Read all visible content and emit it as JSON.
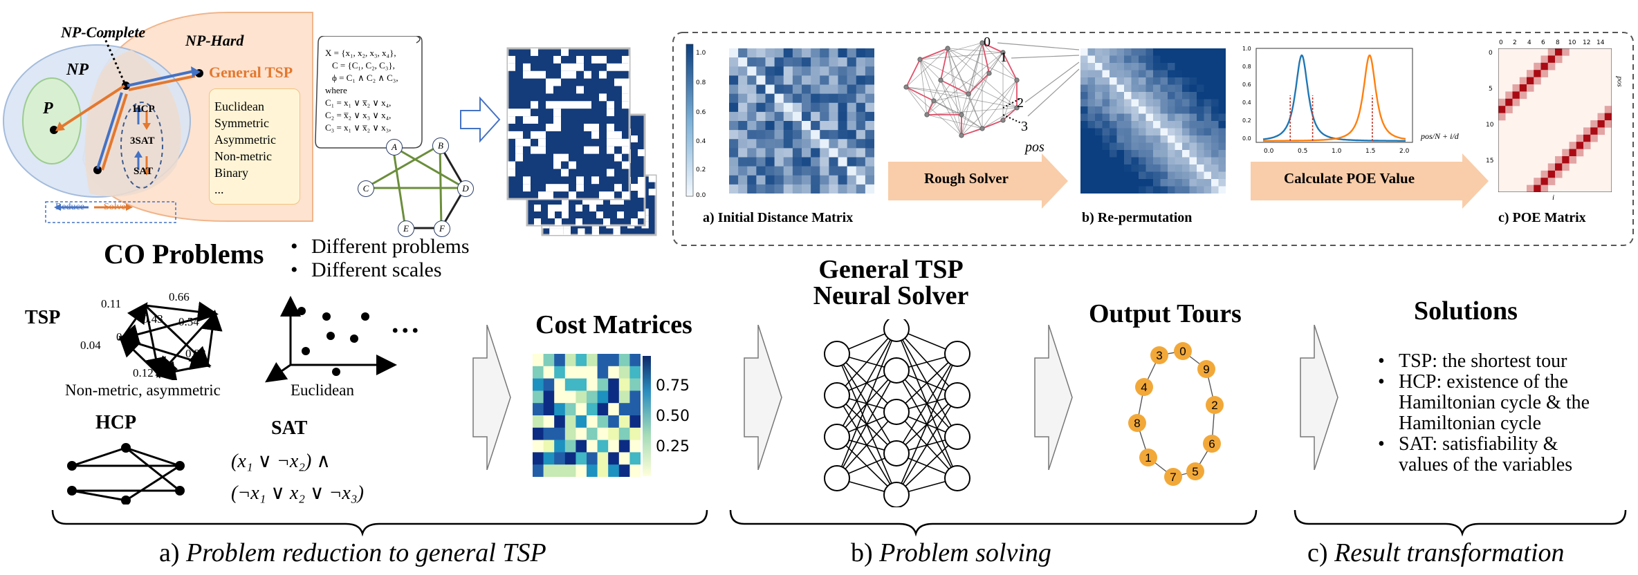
{
  "sets": {
    "np_complete": "NP-Complete",
    "np_hard": "NP-Hard",
    "np": "NP",
    "p": "P",
    "general_tsp": "General TSP",
    "hcp": "HCP",
    "sat3": "3SAT",
    "sat": "SAT",
    "tsp_types": [
      "Euclidean",
      "Symmetric",
      "Asymmetric",
      "Non-metric",
      "Binary",
      "..."
    ],
    "reduce": "Reduce",
    "solve": "Solve"
  },
  "formula_scroll": {
    "lines": [
      "X = {x₁, x₂, x₃, x₄},",
      "C = {C₁, C₂, C₃},",
      "ϕ = C₁ ∧ C₂ ∧ C₃,",
      "where",
      "C₁ = x₁ ∨ x̅₂ ∨ x₄,",
      "C₂ = x̅₂ ∨ x₃ ∨ x₄,",
      "C₃ = x₁ ∨ x̅₂ ∨ x₃,"
    ]
  },
  "hcp_graph_nodes": [
    "A",
    "B",
    "C",
    "D",
    "E",
    "F"
  ],
  "pipeline_panel": {
    "colorbar_ticks": [
      "1.0",
      "0.8",
      "0.6",
      "0.4",
      "0.2",
      "0.0"
    ],
    "step_a": "a) Initial Distance Matrix",
    "rough_solver": "Rough Solver",
    "graph_labels": [
      "0",
      "1",
      "2",
      "3",
      "pos"
    ],
    "step_b": "b) Re-permutation",
    "calc_poe": "Calculate POE Value",
    "poe_xticks": [
      "0.0",
      "0.5",
      "1.0",
      "1.5",
      "2.0"
    ],
    "poe_yticks": [
      "1.0",
      "0.8",
      "0.6",
      "0.4",
      "0.2",
      "0.0"
    ],
    "poe_xlabel": "pos/N + i/d",
    "poe_matrix_ticks": [
      "0",
      "2",
      "4",
      "6",
      "8",
      "10",
      "12",
      "14"
    ],
    "poe_matrix_yticks": [
      "0",
      "5",
      "10",
      "15"
    ],
    "poe_matrix_xlabel": "i",
    "poe_matrix_ylabel": "pos",
    "step_c": "c) POE Matrix"
  },
  "co_problems": {
    "title": "CO Problems",
    "bullets": [
      "Different problems",
      "Different scales"
    ],
    "tsp": "TSP",
    "tsp_weights": [
      "0.11",
      "0.66",
      "0.43",
      "0.54",
      "0.02",
      "0.04",
      "0.23",
      "0.12"
    ],
    "non_metric": "Non-metric, asymmetric",
    "euclidean": "Euclidean",
    "ellipsis": "...",
    "hcp": "HCP",
    "sat": "SAT",
    "sat_line1": "(x₁ ∨ ¬x₂) ∧",
    "sat_line2": "(¬x₁ ∨ x₂ ∨ ¬x₃)"
  },
  "cost_matrices": {
    "title": "Cost Matrices",
    "colorbar_ticks": [
      "0.75",
      "0.50",
      "0.25"
    ]
  },
  "neural_solver": {
    "title_line1": "General TSP",
    "title_line2": "Neural Solver"
  },
  "output_tours": {
    "title": "Output Tours",
    "nodes": [
      "3",
      "0",
      "9",
      "4",
      "2",
      "8",
      "6",
      "1",
      "5",
      "7"
    ]
  },
  "solutions": {
    "title": "Solutions",
    "bullets": [
      "TSP: the shortest tour",
      "HCP: existence of the Hamiltonian cycle & the Hamiltonian cycle",
      "SAT: satisfiability & values of the variables"
    ]
  },
  "stages": {
    "a_prefix": "a)",
    "a_text": "Problem reduction to general TSP",
    "b_prefix": "b)",
    "b_text": "Problem solving",
    "c_prefix": "c)",
    "c_text": "Result transformation"
  },
  "colors": {
    "np_blue": "#dbe6f5",
    "p_green": "#d9efd2",
    "nphard_orange": "#fde3d0",
    "accent_orange": "#e3782f",
    "matrix_navy": "#143b7a",
    "tour_node": "#f2a838",
    "arrow_fill": "#f9cda9"
  }
}
